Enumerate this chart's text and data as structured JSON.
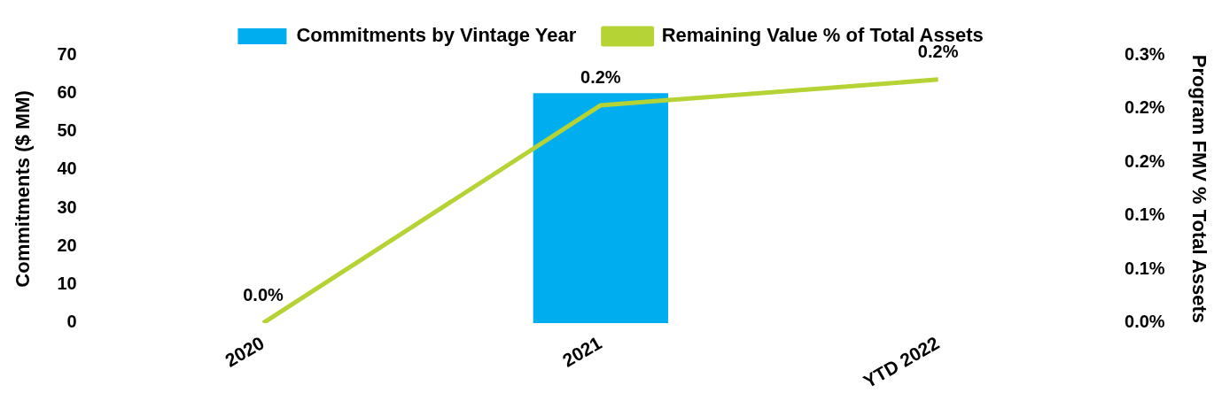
{
  "chart_data": {
    "type": "bar",
    "categories": [
      "2020",
      "2021",
      "YTD 2022"
    ],
    "ylabel": "Commitments ($ MM)",
    "y2label": "Program FMV % Total Assets",
    "series": [
      {
        "name": "Commitments by Vintage Year",
        "color": "#00aeef",
        "values": [
          0,
          60,
          null
        ]
      },
      {
        "name": "Remaining Value % of Total Assets",
        "type": "line",
        "axis": "y2",
        "color": "#b5d334",
        "values": [
          0,
          0.203,
          0.227
        ],
        "value_labels": [
          "0.0%",
          "0.2%",
          "0.2%"
        ]
      }
    ],
    "ylim": [
      0,
      70
    ],
    "yticks": [
      0,
      10,
      20,
      30,
      40,
      50,
      60,
      70
    ],
    "y2lim": [
      0,
      0.25
    ],
    "y2ticks": [
      {
        "value": 0,
        "label": "0.0%"
      },
      {
        "value": 0.05,
        "label": "0.1%"
      },
      {
        "value": 0.1,
        "label": "0.1%"
      },
      {
        "value": 0.15,
        "label": "0.2%"
      },
      {
        "value": 0.2,
        "label": "0.2%"
      },
      {
        "value": 0.25,
        "label": "0.3%"
      }
    ],
    "legend": "top",
    "grid": false,
    "marker": "none"
  }
}
